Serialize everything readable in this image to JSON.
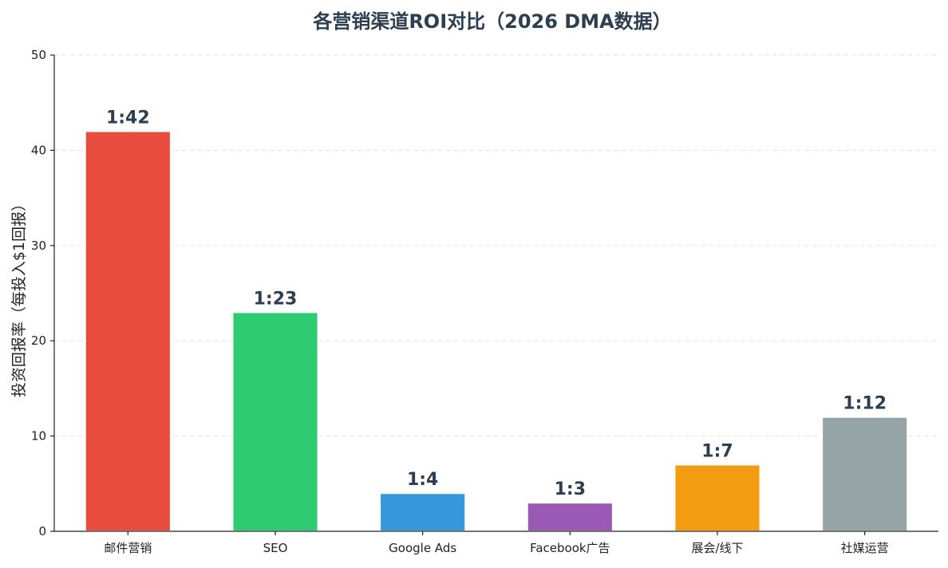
{
  "chart_data": {
    "type": "bar",
    "title": "各营销渠道ROI对比（2026 DMA数据）",
    "xlabel": "",
    "ylabel": "投资回报率（每投入$1回报）",
    "categories": [
      "邮件营销",
      "SEO",
      "Google Ads",
      "Facebook广告",
      "展会/线下",
      "社媒运营"
    ],
    "values": [
      42,
      23,
      4,
      3,
      7,
      12
    ],
    "data_labels": [
      "1:42",
      "1:23",
      "1:4",
      "1:3",
      "1:7",
      "1:12"
    ],
    "colors": [
      "#e74c3c",
      "#2ecc71",
      "#3498db",
      "#9b59b6",
      "#f39c12",
      "#95a5a6"
    ],
    "ylim": [
      0,
      50
    ],
    "yticks": [
      0,
      10,
      20,
      30,
      40,
      50
    ],
    "grid": true,
    "legend": "none"
  }
}
